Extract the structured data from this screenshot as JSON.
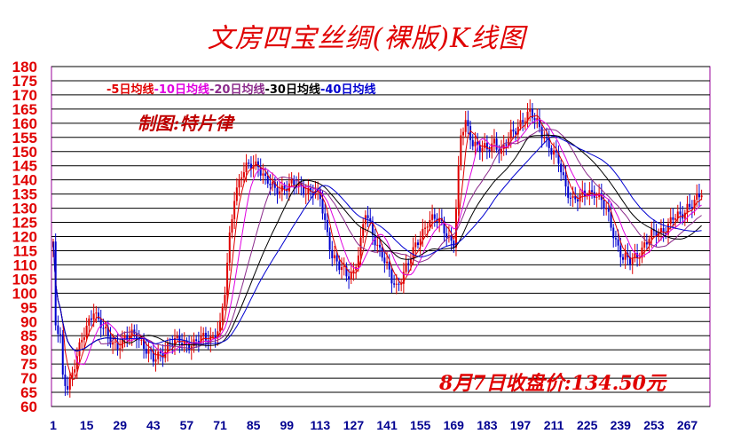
{
  "chart_data": {
    "type": "candlestick",
    "title": "文房四宝丝绸(裸版)K线图",
    "author_note": "制图:特片律",
    "closing_note": "8月7日收盘价:134.50元",
    "ylim": [
      60,
      180
    ],
    "y_ticks": [
      180,
      175,
      170,
      165,
      160,
      155,
      150,
      145,
      140,
      135,
      130,
      125,
      120,
      115,
      110,
      105,
      100,
      95,
      90,
      85,
      80,
      75,
      70,
      65,
      60
    ],
    "x_ticks": [
      "1",
      "15",
      "29",
      "43",
      "57",
      "71",
      "85",
      "99",
      "113",
      "127",
      "141",
      "155",
      "169",
      "183",
      "197",
      "211",
      "225",
      "239",
      "253",
      "267"
    ],
    "x_tick_values": [
      1,
      15,
      29,
      43,
      57,
      71,
      85,
      99,
      113,
      127,
      141,
      155,
      169,
      183,
      197,
      211,
      225,
      239,
      253,
      267
    ],
    "legend": [
      {
        "name": "-5日均线",
        "color": "#e00000"
      },
      {
        "name": "-10日均线",
        "color": "#e000e0"
      },
      {
        "name": "-20日均线",
        "color": "#8b2a8b"
      },
      {
        "name": "-30日均线",
        "color": "#000000"
      },
      {
        "name": "-40日均线",
        "color": "#0000d0"
      }
    ],
    "price_path": [
      [
        1,
        116
      ],
      [
        2,
        88
      ],
      [
        4,
        84
      ],
      [
        5,
        70
      ],
      [
        7,
        68
      ],
      [
        9,
        72
      ],
      [
        12,
        80
      ],
      [
        15,
        88
      ],
      [
        18,
        95
      ],
      [
        20,
        90
      ],
      [
        24,
        84
      ],
      [
        28,
        82
      ],
      [
        32,
        84
      ],
      [
        36,
        86
      ],
      [
        40,
        80
      ],
      [
        43,
        76
      ],
      [
        46,
        79
      ],
      [
        50,
        82
      ],
      [
        55,
        83
      ],
      [
        60,
        82
      ],
      [
        64,
        84
      ],
      [
        68,
        85
      ],
      [
        71,
        88
      ],
      [
        73,
        100
      ],
      [
        75,
        120
      ],
      [
        77,
        135
      ],
      [
        80,
        142
      ],
      [
        84,
        145
      ],
      [
        87,
        146
      ],
      [
        90,
        140
      ],
      [
        94,
        136
      ],
      [
        98,
        138
      ],
      [
        102,
        138
      ],
      [
        106,
        137
      ],
      [
        110,
        136
      ],
      [
        113,
        133
      ],
      [
        115,
        125
      ],
      [
        118,
        114
      ],
      [
        121,
        109
      ],
      [
        124,
        106
      ],
      [
        127,
        108
      ],
      [
        130,
        118
      ],
      [
        132,
        128
      ],
      [
        135,
        121
      ],
      [
        139,
        114
      ],
      [
        143,
        104
      ],
      [
        145,
        102
      ],
      [
        148,
        108
      ],
      [
        152,
        114
      ],
      [
        155,
        120
      ],
      [
        158,
        126
      ],
      [
        161,
        126
      ],
      [
        164,
        124
      ],
      [
        167,
        120
      ],
      [
        169,
        118
      ],
      [
        170,
        130
      ],
      [
        172,
        155
      ],
      [
        174,
        160
      ],
      [
        177,
        154
      ],
      [
        180,
        151
      ],
      [
        183,
        150
      ],
      [
        186,
        154
      ],
      [
        189,
        150
      ],
      [
        192,
        154
      ],
      [
        195,
        158
      ],
      [
        198,
        162
      ],
      [
        201,
        163
      ],
      [
        204,
        160
      ],
      [
        207,
        156
      ],
      [
        210,
        150
      ],
      [
        213,
        146
      ],
      [
        216,
        138
      ],
      [
        219,
        133
      ],
      [
        222,
        133
      ],
      [
        225,
        136
      ],
      [
        228,
        136
      ],
      [
        231,
        132
      ],
      [
        234,
        127
      ],
      [
        237,
        119
      ],
      [
        240,
        112
      ],
      [
        243,
        111
      ],
      [
        246,
        114
      ],
      [
        249,
        117
      ],
      [
        252,
        120
      ],
      [
        255,
        122
      ],
      [
        258,
        123
      ],
      [
        261,
        126
      ],
      [
        264,
        127
      ],
      [
        267,
        131
      ],
      [
        270,
        132
      ],
      [
        273,
        134.5
      ]
    ]
  }
}
